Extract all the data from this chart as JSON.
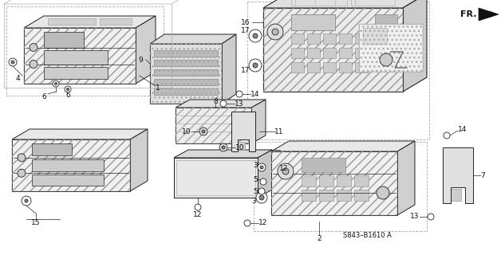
{
  "background_color": "#ffffff",
  "fig_width": 6.28,
  "fig_height": 3.2,
  "dpi": 100,
  "diagram_code": "S843–B1610 A",
  "fr_label": "FR.",
  "line_color": "#222222",
  "text_color": "#111111",
  "label_fontsize": 6.5
}
